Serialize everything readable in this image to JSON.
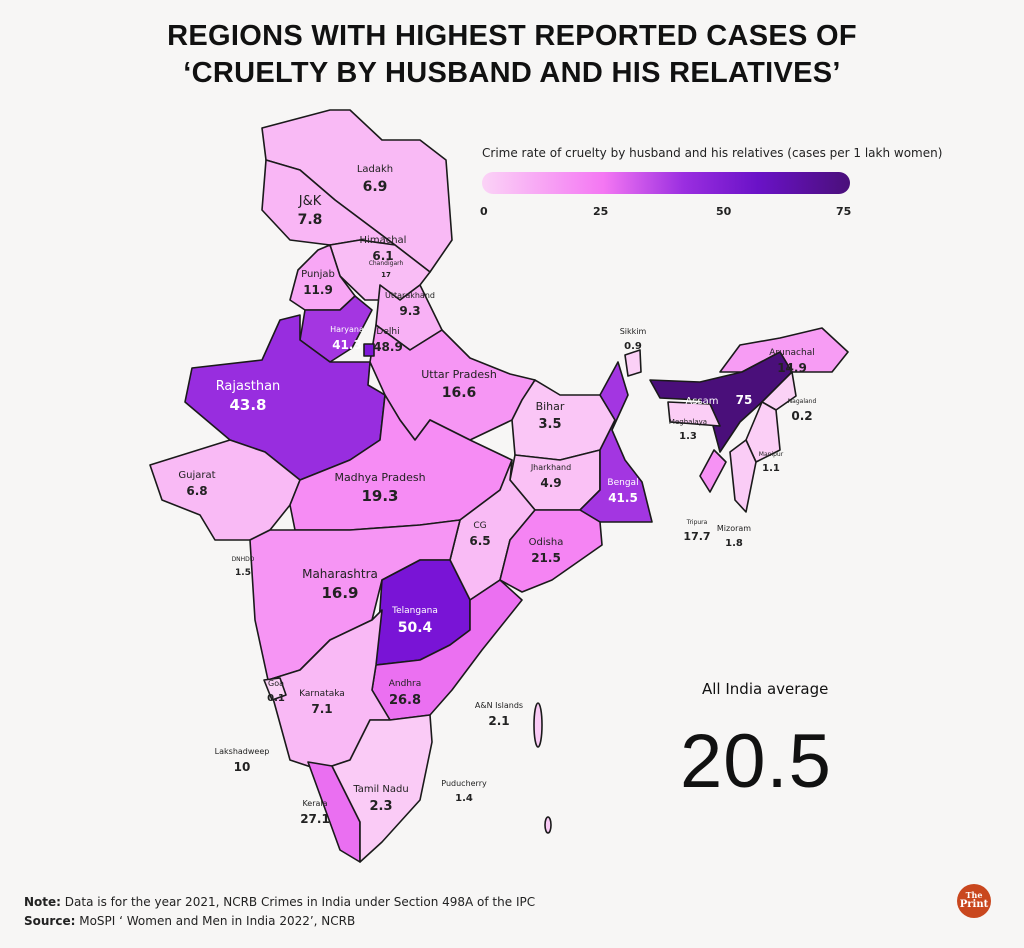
{
  "title": {
    "line1": "REGIONS WITH HIGHEST REPORTED CASES OF",
    "line2": "‘CRUELTY BY HUSBAND AND HIS RELATIVES’"
  },
  "legend": {
    "title": "Crime rate of cruelty by husband and his relatives (cases per 1 lakh women)",
    "ticks": [
      "0",
      "25",
      "50",
      "75"
    ],
    "range": [
      0,
      75
    ],
    "colors": [
      "#fbd3f6",
      "#f477f3",
      "#7a14d8",
      "#4a0f7a"
    ]
  },
  "states": [
    {
      "name": "Ladakh",
      "value": "6.9"
    },
    {
      "name": "J&K",
      "value": "7.8"
    },
    {
      "name": "Himachal",
      "value": "6.1"
    },
    {
      "name": "Chandigarh",
      "value": "17"
    },
    {
      "name": "Punjab",
      "value": "11.9"
    },
    {
      "name": "Uttarakhand",
      "value": "9.3"
    },
    {
      "name": "Haryana",
      "value": "41.3"
    },
    {
      "name": "Delhi",
      "value": "48.9"
    },
    {
      "name": "Rajasthan",
      "value": "43.8"
    },
    {
      "name": "Uttar Pradesh",
      "value": "16.6"
    },
    {
      "name": "Gujarat",
      "value": "6.8"
    },
    {
      "name": "Madhya Pradesh",
      "value": "19.3"
    },
    {
      "name": "Bihar",
      "value": "3.5"
    },
    {
      "name": "Jharkhand",
      "value": "4.9"
    },
    {
      "name": "Bengal",
      "value": "41.5"
    },
    {
      "name": "CG",
      "value": "6.5"
    },
    {
      "name": "Odisha",
      "value": "21.5"
    },
    {
      "name": "Maharashtra",
      "value": "16.9"
    },
    {
      "name": "Telangana",
      "value": "50.4"
    },
    {
      "name": "Andhra",
      "value": "26.8"
    },
    {
      "name": "Karnataka",
      "value": "7.1"
    },
    {
      "name": "Goa",
      "value": "0.1"
    },
    {
      "name": "Kerala",
      "value": "27.1"
    },
    {
      "name": "Tamil Nadu",
      "value": "2.3"
    },
    {
      "name": "Puducherry",
      "value": "1.4"
    },
    {
      "name": "Lakshadweep",
      "value": "10"
    },
    {
      "name": "A&N Islands",
      "value": "2.1"
    },
    {
      "name": "DNHDD",
      "value": "1.5"
    },
    {
      "name": "Sikkim",
      "value": "0.9"
    },
    {
      "name": "Arunachal",
      "value": "14.9"
    },
    {
      "name": "Assam",
      "value": "75"
    },
    {
      "name": "Nagaland",
      "value": "0.2"
    },
    {
      "name": "Meghalaya",
      "value": "1.3"
    },
    {
      "name": "Manipur",
      "value": "1.1"
    },
    {
      "name": "Mizoram",
      "value": "1.8"
    },
    {
      "name": "Tripura",
      "value": "17.7"
    }
  ],
  "average": {
    "label": "All India average",
    "value": "20.5"
  },
  "notes": {
    "note_label": "Note:",
    "note_text": " Data is for the year 2021, NCRB Crimes in India under Section 498A of the IPC",
    "source_label": "Source:",
    "source_text": " MoSPI ‘ Women and Men in India 2022’, NCRB"
  },
  "logo": {
    "line1": "The",
    "line2": "Print",
    "color": "#c9471e"
  }
}
